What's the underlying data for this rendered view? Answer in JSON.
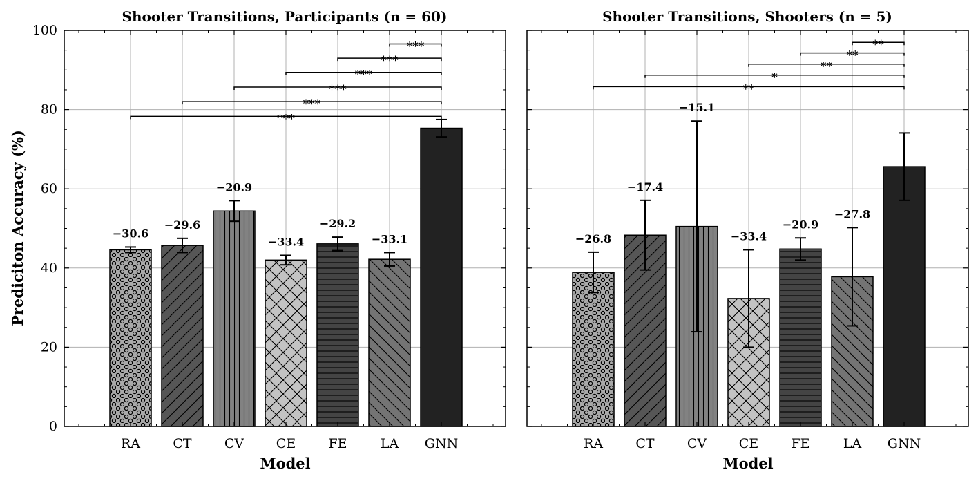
{
  "chart_data": [
    {
      "type": "bar",
      "title": "Shooter Transitions, Participants (n = 60)",
      "xlabel": "Model",
      "ylabel": "Prediciton Accuracy (%)",
      "ylim": [
        0,
        100
      ],
      "yticks": [
        0,
        20,
        40,
        60,
        80,
        100
      ],
      "grid": true,
      "categories": [
        "RA",
        "CT",
        "CV",
        "CE",
        "FE",
        "LA",
        "GNN"
      ],
      "values": [
        44.6,
        45.7,
        54.4,
        42.0,
        46.1,
        42.2,
        75.3
      ],
      "errors": [
        0.7,
        1.8,
        2.6,
        1.2,
        1.7,
        1.7,
        2.2
      ],
      "bar_labels": [
        "−30.6",
        "−29.6",
        "−20.9",
        "−33.4",
        "−29.2",
        "−33.1",
        ""
      ],
      "colors": [
        "#a9a9a9",
        "#565656",
        "#828282",
        "#c3c3c3",
        "#444444",
        "#747474",
        "#222222"
      ],
      "hatches": [
        "dots",
        "diag",
        "vert",
        "cross",
        "horiz",
        "backdiag",
        "none"
      ],
      "significance": [
        {
          "from": "RA",
          "to": "GNN",
          "label": "***",
          "y": 78.3
        },
        {
          "from": "CT",
          "to": "GNN",
          "label": "***",
          "y": 82.0
        },
        {
          "from": "CV",
          "to": "GNN",
          "label": "***",
          "y": 85.7
        },
        {
          "from": "CE",
          "to": "GNN",
          "label": "***",
          "y": 89.4
        },
        {
          "from": "FE",
          "to": "GNN",
          "label": "***",
          "y": 93.0
        },
        {
          "from": "LA",
          "to": "GNN",
          "label": "***",
          "y": 96.6
        }
      ]
    },
    {
      "type": "bar",
      "title": "Shooter Transitions, Shooters (n = 5)",
      "xlabel": "Model",
      "ylabel": "",
      "ylim": [
        0,
        100
      ],
      "yticks": [
        0,
        20,
        40,
        60,
        80,
        100
      ],
      "grid": true,
      "categories": [
        "RA",
        "CT",
        "CV",
        "CE",
        "FE",
        "LA",
        "GNN"
      ],
      "values": [
        38.9,
        48.3,
        50.5,
        32.3,
        44.8,
        37.8,
        65.6
      ],
      "errors": [
        5.1,
        8.8,
        26.6,
        12.3,
        2.8,
        12.4,
        8.5
      ],
      "bar_labels": [
        "−26.8",
        "−17.4",
        "−15.1",
        "−33.4",
        "−20.9",
        "−27.8",
        ""
      ],
      "colors": [
        "#a9a9a9",
        "#565656",
        "#828282",
        "#c3c3c3",
        "#444444",
        "#747474",
        "#222222"
      ],
      "hatches": [
        "dots",
        "diag",
        "vert",
        "cross",
        "horiz",
        "backdiag",
        "none"
      ],
      "significance": [
        {
          "from": "RA",
          "to": "GNN",
          "label": "**",
          "y": 85.8
        },
        {
          "from": "CT",
          "to": "GNN",
          "label": "*",
          "y": 88.7
        },
        {
          "from": "CE",
          "to": "GNN",
          "label": "**",
          "y": 91.5
        },
        {
          "from": "FE",
          "to": "GNN",
          "label": "**",
          "y": 94.3
        },
        {
          "from": "LA",
          "to": "GNN",
          "label": "**",
          "y": 97.0
        }
      ]
    }
  ]
}
